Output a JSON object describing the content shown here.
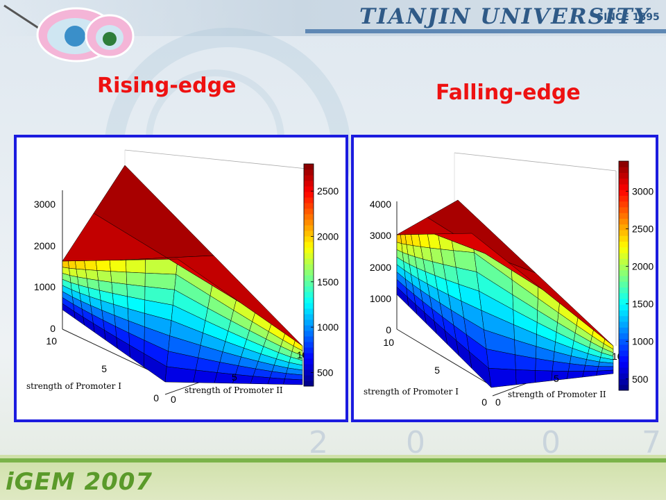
{
  "header": {
    "university": "TIANJIN UNIVERSITY",
    "since": "SINCE 1895"
  },
  "footer": {
    "brand": "iGEM 2007",
    "deco_numbers": [
      "2",
      "0",
      "0",
      "7"
    ]
  },
  "titles": {
    "left": "Rising-edge",
    "right": "Falling-edge"
  },
  "colormap": "jet",
  "chart_data": [
    {
      "type": "surface",
      "title": "Rising-edge",
      "xlabel": "strength of Promoter I",
      "ylabel": "strength of Promoter II",
      "xticks": [
        "0",
        "5",
        "10"
      ],
      "yticks": [
        "0",
        "5",
        "10"
      ],
      "zticks": [
        "0",
        "1000",
        "2000",
        "3000"
      ],
      "zlim": [
        0,
        3000
      ],
      "colorbar": {
        "ticks": [
          "500",
          "1000",
          "1500",
          "2000",
          "2500"
        ],
        "range": [
          350,
          2800
        ]
      },
      "max_value": 2800
    },
    {
      "type": "surface",
      "title": "Falling-edge",
      "xlabel": "strength of Promoter I",
      "ylabel": "strength of Promoter II",
      "xticks": [
        "0",
        "5",
        "10"
      ],
      "yticks": [
        "0",
        "5",
        "10"
      ],
      "zticks": [
        "0",
        "1000",
        "2000",
        "3000",
        "4000"
      ],
      "zlim": [
        0,
        4000
      ],
      "colorbar": {
        "ticks": [
          "500",
          "1000",
          "1500",
          "2000",
          "2500",
          "3000"
        ],
        "range": [
          350,
          3400
        ]
      },
      "max_value": 3400
    }
  ]
}
